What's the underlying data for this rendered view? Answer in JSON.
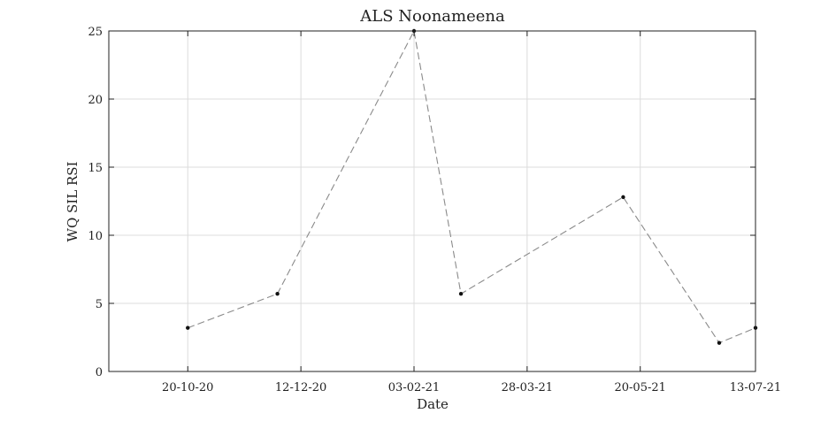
{
  "chart_data": {
    "type": "line",
    "title": "ALS Noonameena",
    "xlabel": "Date",
    "ylabel": "WQ SIL RSI",
    "x_type": "date",
    "x_date_format": "DD-MM-YY",
    "xlim": [
      "2020-09-13",
      "2021-07-13"
    ],
    "ylim": [
      0,
      25
    ],
    "x_ticks": [
      {
        "date": "2020-10-20",
        "label": "20-10-20"
      },
      {
        "date": "2020-12-12",
        "label": "12-12-20"
      },
      {
        "date": "2021-02-03",
        "label": "03-02-21"
      },
      {
        "date": "2021-03-28",
        "label": "28-03-21"
      },
      {
        "date": "2021-05-20",
        "label": "20-05-21"
      },
      {
        "date": "2021-07-13",
        "label": "13-07-21"
      }
    ],
    "y_ticks": [
      0,
      5,
      10,
      15,
      20,
      25
    ],
    "grid": true,
    "legend": false,
    "series": [
      {
        "line_style": "dashed",
        "line_color": "#8a8a8a",
        "marker_color": "#111111",
        "points": [
          {
            "x": "2020-10-20",
            "y": 3.2
          },
          {
            "x": "2020-12-01",
            "y": 5.7
          },
          {
            "x": "2021-02-03",
            "y": 25.0
          },
          {
            "x": "2021-02-25",
            "y": 5.7
          },
          {
            "x": "2021-05-12",
            "y": 12.8
          },
          {
            "x": "2021-06-26",
            "y": 2.1
          },
          {
            "x": "2021-07-13",
            "y": 3.2
          }
        ]
      }
    ]
  }
}
